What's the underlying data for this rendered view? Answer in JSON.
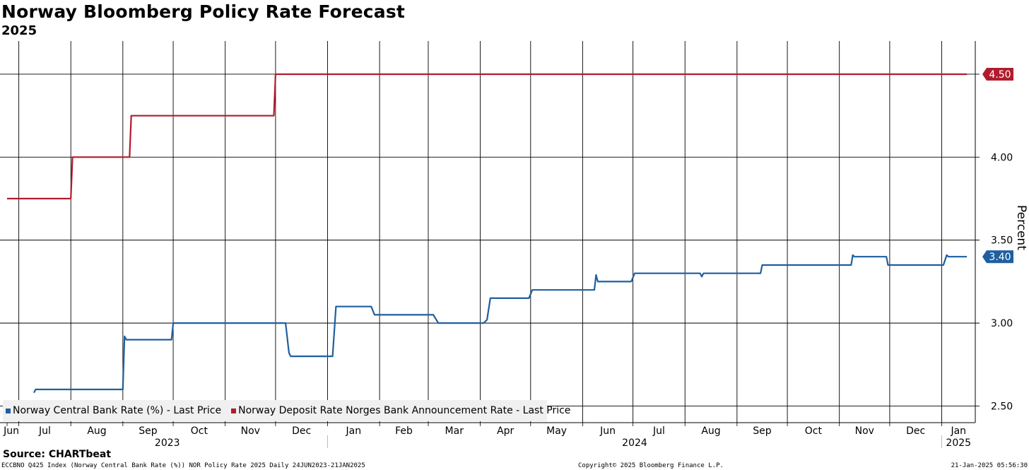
{
  "header": {
    "title": "Norway Bloomberg Policy Rate Forecast",
    "subtitle": "2025"
  },
  "footer": {
    "source": "Source: CHARTbeat",
    "left_note": "ECCBNO Q425 Index (Norway Central Bank Rate (%)) NOR Policy Rate 2025  Daily 24JUN2023-21JAN2025",
    "center_note": "Copyright© 2025 Bloomberg Finance L.P.",
    "right_note": "21-Jan-2025 05:56:30"
  },
  "chart_data": {
    "type": "line",
    "title": "Norway Bloomberg Policy Rate Forecast",
    "subtitle": "2025",
    "ylabel": "Percent",
    "ylim": [
      2.4,
      4.7
    ],
    "yticks": [
      "2.50",
      "3.00",
      "3.50",
      "4.00"
    ],
    "xlim": [
      "2023-06-24",
      "2025-01-21"
    ],
    "grid": true,
    "legend_position": "bottom-left",
    "x_month_ticks": [
      {
        "label": "Jun",
        "date": "2023-06-24"
      },
      {
        "label": "Jul",
        "date": "2023-07-01"
      },
      {
        "label": "Aug",
        "date": "2023-08-01"
      },
      {
        "label": "Sep",
        "date": "2023-09-01"
      },
      {
        "label": "Oct",
        "date": "2023-10-01"
      },
      {
        "label": "Nov",
        "date": "2023-11-01"
      },
      {
        "label": "Dec",
        "date": "2023-12-01"
      },
      {
        "label": "Jan",
        "date": "2024-01-01"
      },
      {
        "label": "Feb",
        "date": "2024-02-01"
      },
      {
        "label": "Mar",
        "date": "2024-03-01"
      },
      {
        "label": "Apr",
        "date": "2024-04-01"
      },
      {
        "label": "May",
        "date": "2024-05-01"
      },
      {
        "label": "Jun",
        "date": "2024-06-01"
      },
      {
        "label": "Jul",
        "date": "2024-07-01"
      },
      {
        "label": "Aug",
        "date": "2024-08-01"
      },
      {
        "label": "Sep",
        "date": "2024-09-01"
      },
      {
        "label": "Oct",
        "date": "2024-10-01"
      },
      {
        "label": "Nov",
        "date": "2024-11-01"
      },
      {
        "label": "Dec",
        "date": "2024-12-01"
      },
      {
        "label": "Jan",
        "date": "2025-01-01"
      }
    ],
    "x_year_labels": [
      {
        "label": "2023",
        "start": "2023-06-24",
        "end": "2024-01-01"
      },
      {
        "label": "2024",
        "start": "2024-01-01",
        "end": "2025-01-01"
      },
      {
        "label": "2025",
        "start": "2025-01-01",
        "end": "2025-01-21"
      }
    ],
    "series": [
      {
        "name": "Norway Central Bank Rate (%) - Last Price",
        "color": "#1f5fa0",
        "last_label": "3.40",
        "x": [
          "2023-07-10",
          "2023-07-11",
          "2023-09-01",
          "2023-09-02",
          "2023-09-03",
          "2023-09-30",
          "2023-10-01",
          "2023-12-07",
          "2023-12-09",
          "2023-12-10",
          "2024-01-04",
          "2024-01-06",
          "2024-01-27",
          "2024-01-29",
          "2024-03-04",
          "2024-03-07",
          "2024-04-03",
          "2024-04-05",
          "2024-04-07",
          "2024-04-30",
          "2024-05-02",
          "2024-06-08",
          "2024-06-09",
          "2024-06-10",
          "2024-06-11",
          "2024-06-30",
          "2024-07-02",
          "2024-08-10",
          "2024-08-11",
          "2024-08-12",
          "2024-09-15",
          "2024-09-16",
          "2024-11-08",
          "2024-11-09",
          "2024-11-10",
          "2024-11-29",
          "2024-11-30",
          "2025-01-02",
          "2025-01-04",
          "2025-01-05",
          "2025-01-16"
        ],
        "y": [
          2.58,
          2.6,
          2.6,
          2.92,
          2.9,
          2.9,
          3.0,
          3.0,
          2.82,
          2.8,
          2.8,
          3.1,
          3.1,
          3.05,
          3.05,
          3.0,
          3.0,
          3.02,
          3.15,
          3.15,
          3.2,
          3.2,
          3.29,
          3.25,
          3.25,
          3.25,
          3.3,
          3.3,
          3.28,
          3.3,
          3.3,
          3.35,
          3.35,
          3.41,
          3.4,
          3.4,
          3.35,
          3.35,
          3.41,
          3.4,
          3.4
        ]
      },
      {
        "name": "Norway Deposit Rate Norges Bank Announcement Rate - Last Price",
        "color": "#b01c2e",
        "last_label": "4.50",
        "x": [
          "2023-06-24",
          "2023-08-01",
          "2023-08-02",
          "2023-09-05",
          "2023-09-06",
          "2023-11-30",
          "2023-12-01",
          "2025-01-16"
        ],
        "y": [
          3.75,
          3.75,
          4.0,
          4.0,
          4.25,
          4.25,
          4.5,
          4.5
        ]
      }
    ]
  }
}
